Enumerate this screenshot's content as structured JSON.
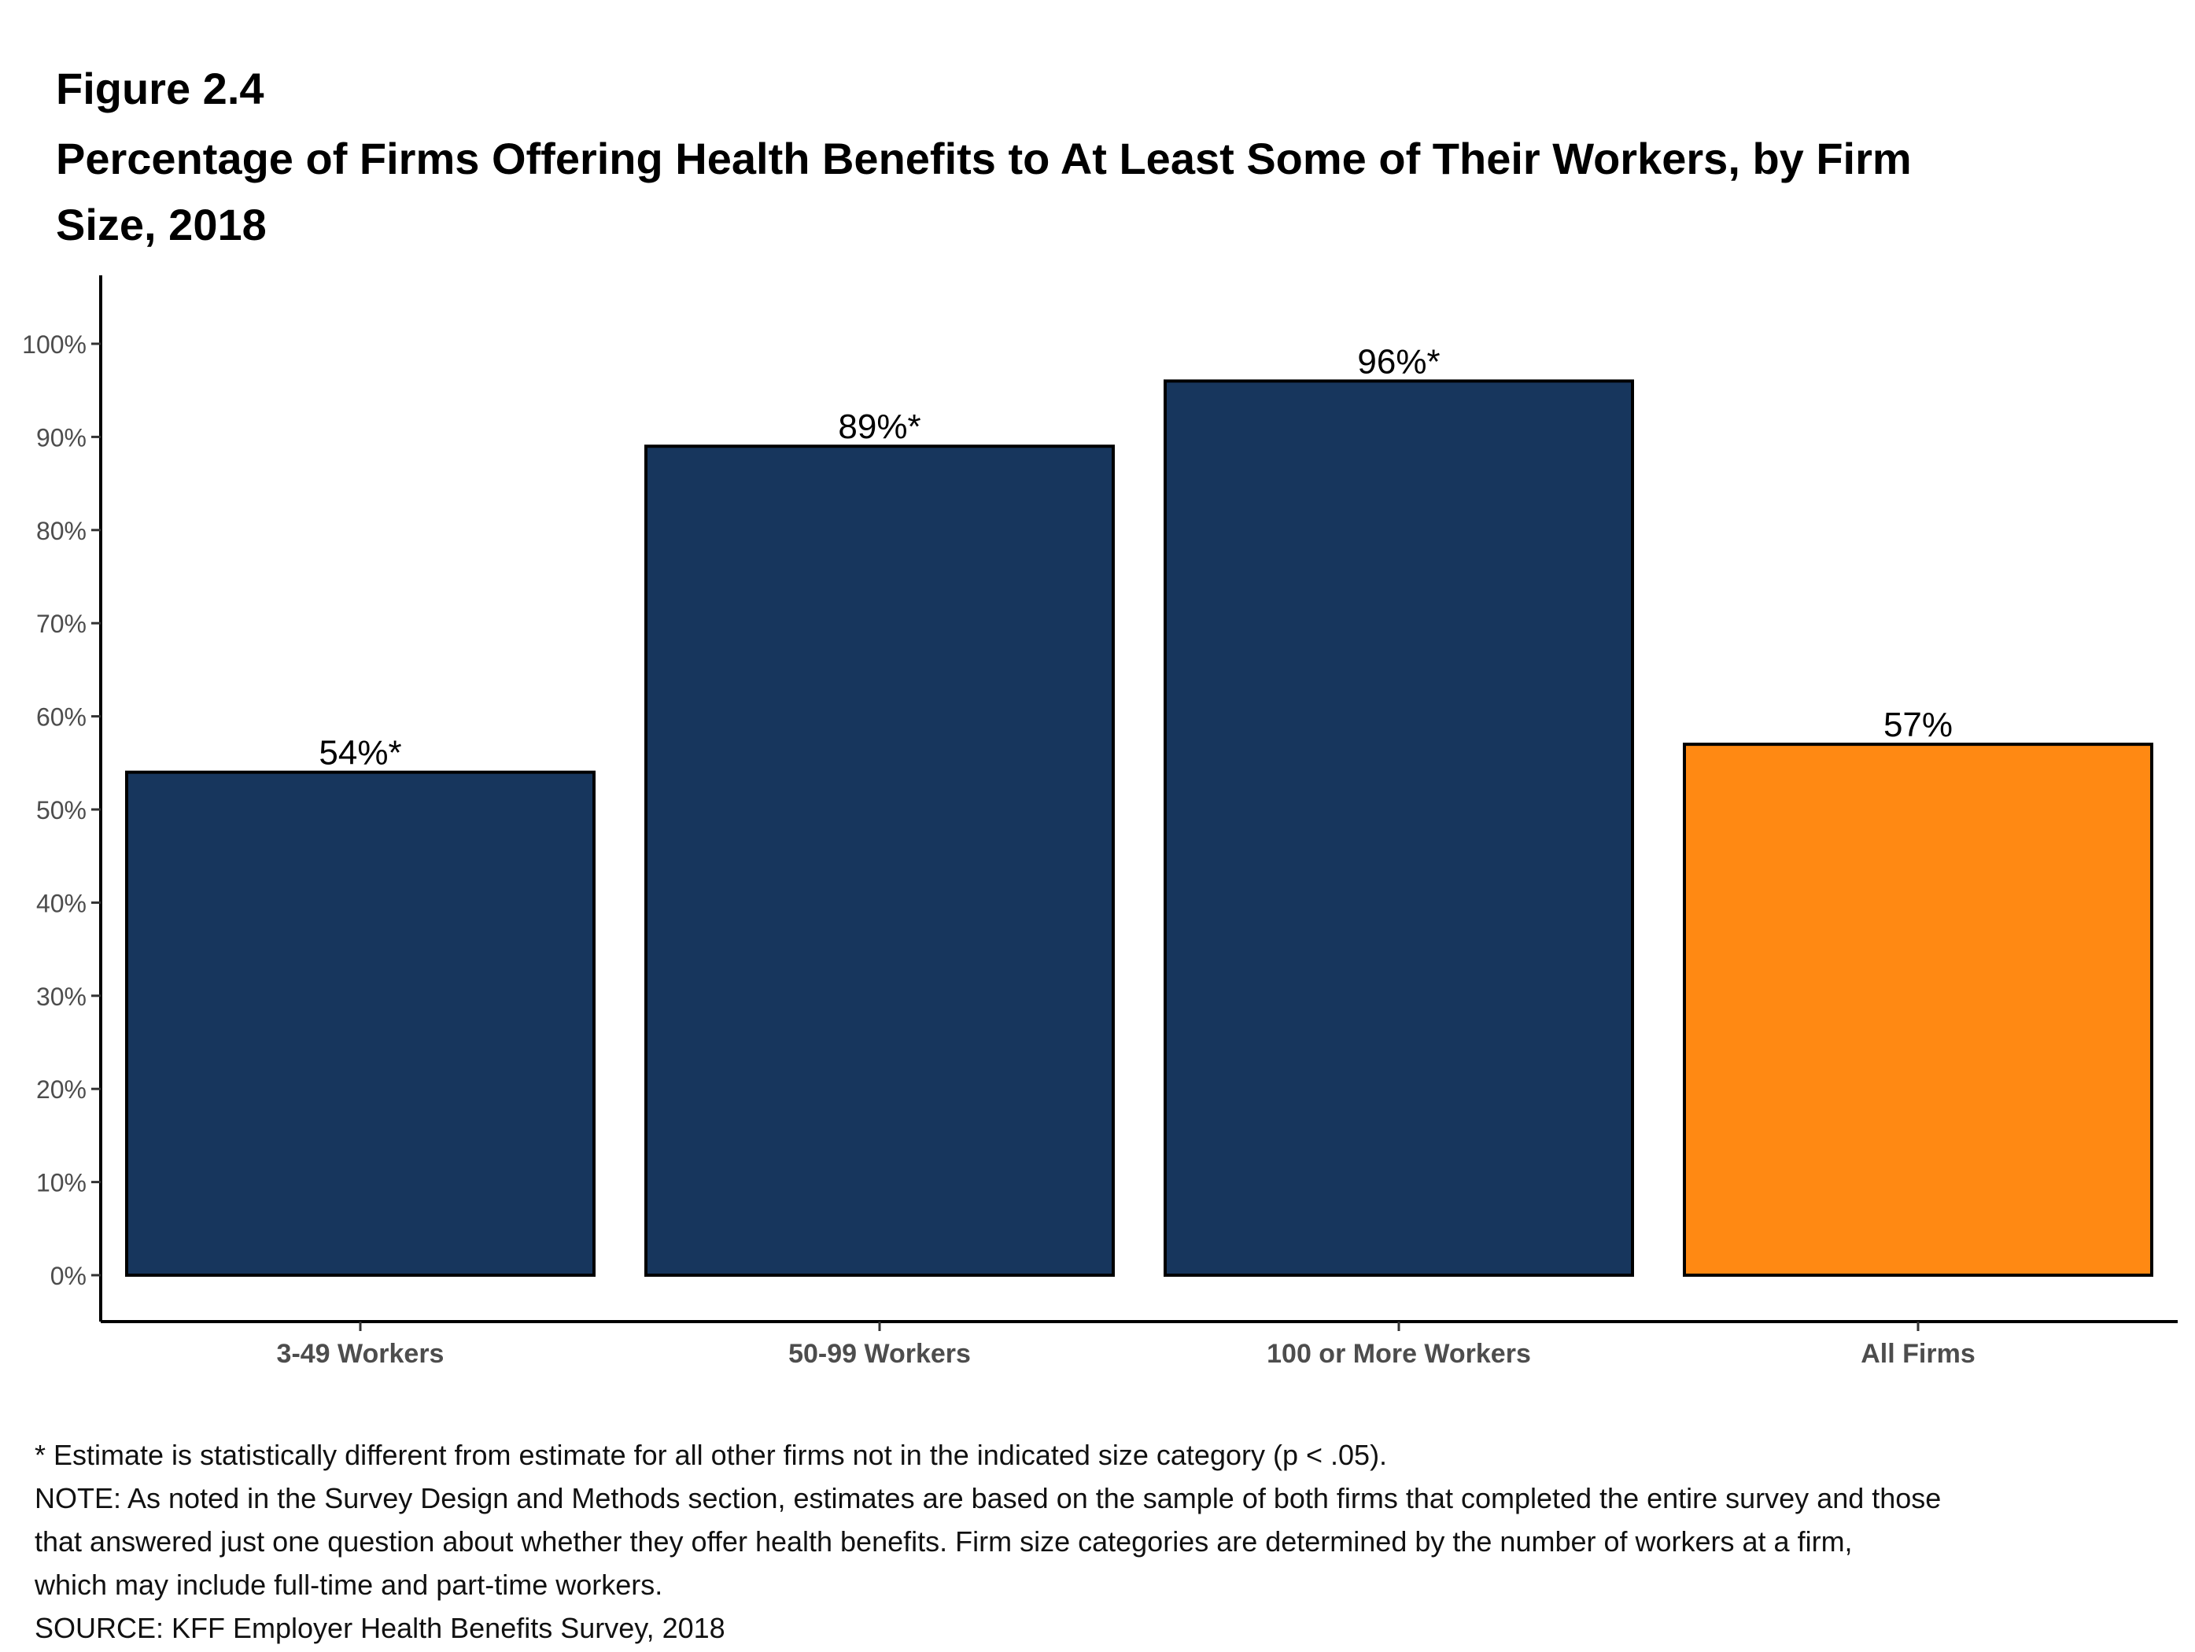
{
  "figure_label": "Figure 2.4",
  "title": "Percentage of Firms Offering Health Benefits to At Least Some of Their Workers, by Firm Size, 2018",
  "chart_data": {
    "type": "bar",
    "categories": [
      "3-49 Workers",
      "50-99 Workers",
      "100 or More Workers",
      "All Firms"
    ],
    "values": [
      54,
      89,
      96,
      57
    ],
    "value_labels": [
      "54%*",
      "89%*",
      "96%*",
      "57%"
    ],
    "bar_colors": [
      "#17365d",
      "#17365d",
      "#17365d",
      "#ff8913"
    ],
    "ylim": [
      0,
      100
    ],
    "yticks": [
      0,
      10,
      20,
      30,
      40,
      50,
      60,
      70,
      80,
      90,
      100
    ],
    "ytick_labels": [
      "0%",
      "10%",
      "20%",
      "30%",
      "40%",
      "50%",
      "60%",
      "70%",
      "80%",
      "90%",
      "100%"
    ],
    "xlabel": "",
    "ylabel": "",
    "grid": false
  },
  "notes": [
    "* Estimate is statistically different from estimate for all other firms not in the indicated size category (p < .05).",
    "NOTE: As noted in the Survey Design and Methods section, estimates are based on the sample of both firms that completed the entire survey and those",
    "that answered just one question about whether they offer health benefits. Firm size categories are determined by the number of workers at a firm,",
    "which may include full-time and part-time workers.",
    "SOURCE: KFF Employer Health Benefits Survey, 2018"
  ]
}
